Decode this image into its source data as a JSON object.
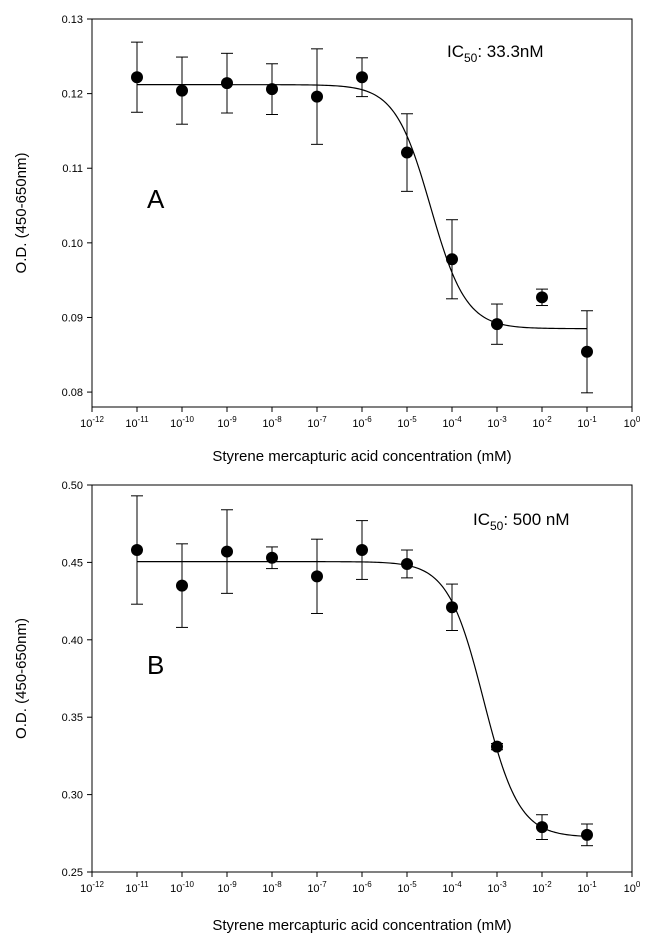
{
  "chart_data": [
    {
      "type": "scatter",
      "panel_label": "A",
      "annotation": {
        "main": "IC",
        "sub": "50",
        "rest": ": 33.3nM"
      },
      "xlabel": "Styrene mercapturic acid concentration (mM)",
      "ylabel": "O.D. (450-650nm)",
      "x_scale": "log",
      "xlim": [
        1e-12,
        1
      ],
      "ylim": [
        0.078,
        0.13
      ],
      "x_ticks": [
        {
          "base": "10",
          "exp": "-12"
        },
        {
          "base": "10",
          "exp": "-11"
        },
        {
          "base": "10",
          "exp": "-10"
        },
        {
          "base": "10",
          "exp": "-9"
        },
        {
          "base": "10",
          "exp": "-8"
        },
        {
          "base": "10",
          "exp": "-7"
        },
        {
          "base": "10",
          "exp": "-6"
        },
        {
          "base": "10",
          "exp": "-5"
        },
        {
          "base": "10",
          "exp": "-4"
        },
        {
          "base": "10",
          "exp": "-3"
        },
        {
          "base": "10",
          "exp": "-2"
        },
        {
          "base": "10",
          "exp": "-1"
        },
        {
          "base": "10",
          "exp": "0"
        }
      ],
      "y_ticks": [
        "0.08",
        "0.09",
        "0.10",
        "0.11",
        "0.12",
        "0.13"
      ],
      "points": [
        {
          "x": 1e-11,
          "y": 0.1222,
          "err": 0.0047
        },
        {
          "x": 1e-10,
          "y": 0.1204,
          "err": 0.0045
        },
        {
          "x": 1e-09,
          "y": 0.1214,
          "err": 0.004
        },
        {
          "x": 1e-08,
          "y": 0.1206,
          "err": 0.0034
        },
        {
          "x": 1e-07,
          "y": 0.1196,
          "err": 0.0064
        },
        {
          "x": 1e-06,
          "y": 0.1222,
          "err": 0.0026
        },
        {
          "x": 1e-05,
          "y": 0.1121,
          "err": 0.0052
        },
        {
          "x": 0.0001,
          "y": 0.0978,
          "err": 0.0053
        },
        {
          "x": 0.001,
          "y": 0.0891,
          "err": 0.0027
        },
        {
          "x": 0.01,
          "y": 0.0927,
          "err": 0.0011
        },
        {
          "x": 0.1,
          "y": 0.0854,
          "err": 0.0055
        }
      ],
      "fit_curve": {
        "top": 0.1212,
        "bottom": 0.0885,
        "ic50_mM": 3.33e-05,
        "hill": 1.1
      }
    },
    {
      "type": "scatter",
      "panel_label": "B",
      "annotation": {
        "main": "IC",
        "sub": "50",
        "rest": ": 500 nM"
      },
      "xlabel": "Styrene mercapturic acid concentration (mM)",
      "ylabel": "O.D. (450-650nm)",
      "x_scale": "log",
      "xlim": [
        1e-12,
        1
      ],
      "ylim": [
        0.25,
        0.5
      ],
      "x_ticks": [
        {
          "base": "10",
          "exp": "-12"
        },
        {
          "base": "10",
          "exp": "-11"
        },
        {
          "base": "10",
          "exp": "-10"
        },
        {
          "base": "10",
          "exp": "-9"
        },
        {
          "base": "10",
          "exp": "-8"
        },
        {
          "base": "10",
          "exp": "-7"
        },
        {
          "base": "10",
          "exp": "-6"
        },
        {
          "base": "10",
          "exp": "-5"
        },
        {
          "base": "10",
          "exp": "-4"
        },
        {
          "base": "10",
          "exp": "-3"
        },
        {
          "base": "10",
          "exp": "-2"
        },
        {
          "base": "10",
          "exp": "-1"
        },
        {
          "base": "10",
          "exp": "0"
        }
      ],
      "y_ticks": [
        "0.25",
        "0.30",
        "0.35",
        "0.40",
        "0.45",
        "0.50"
      ],
      "points": [
        {
          "x": 1e-11,
          "y": 0.458,
          "err": 0.035
        },
        {
          "x": 1e-10,
          "y": 0.435,
          "err": 0.027
        },
        {
          "x": 1e-09,
          "y": 0.457,
          "err": 0.027
        },
        {
          "x": 1e-08,
          "y": 0.453,
          "err": 0.007
        },
        {
          "x": 1e-07,
          "y": 0.441,
          "err": 0.024
        },
        {
          "x": 1e-06,
          "y": 0.458,
          "err": 0.019
        },
        {
          "x": 1e-05,
          "y": 0.449,
          "err": 0.009
        },
        {
          "x": 0.0001,
          "y": 0.421,
          "err": 0.015
        },
        {
          "x": 0.001,
          "y": 0.331,
          "err": 0.002
        },
        {
          "x": 0.01,
          "y": 0.279,
          "err": 0.008
        },
        {
          "x": 0.1,
          "y": 0.274,
          "err": 0.007
        }
      ],
      "fit_curve": {
        "top": 0.4505,
        "bottom": 0.2725,
        "ic50_mM": 0.0005,
        "hill": 1.1
      }
    }
  ]
}
